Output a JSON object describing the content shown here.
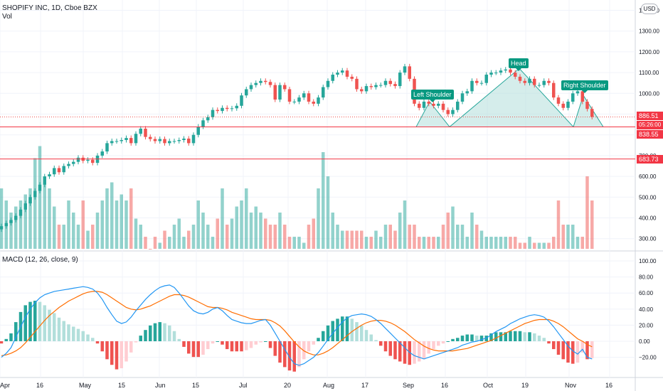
{
  "header": {
    "symbol": "SHOPIFY INC, 1D, Cboe BZX",
    "volume_label": "Vol",
    "macd_label": "MACD (12, 26, close, 9)",
    "currency": "USD"
  },
  "price_axis": {
    "labels": [
      "1400.00",
      "1300.00",
      "1200.00",
      "1100.00",
      "1000.00",
      "900.00",
      "800.00",
      "700.00",
      "600.00",
      "500.00",
      "400.00",
      "300.00"
    ],
    "current_price": "886.51",
    "countdown": "05:26:00"
  },
  "macd_axis": {
    "labels": [
      "100.00",
      "80.00",
      "60.00",
      "40.00",
      "20.00",
      "0.00",
      "−20.00"
    ]
  },
  "time_axis": {
    "labels": [
      "Apr",
      "16",
      "May",
      "15",
      "Jun",
      "15",
      "Jul",
      "20",
      "Aug",
      "17",
      "Sep",
      "16",
      "Oct",
      "19",
      "Nov",
      "16"
    ]
  },
  "horizontal_levels": [
    {
      "label": "838.55",
      "price": 838.55,
      "color": "#f23645"
    },
    {
      "label": "683.73",
      "price": 683.73,
      "color": "#f23645"
    }
  ],
  "annotations": {
    "left_shoulder": "Left Shoulder",
    "head": "Head",
    "right_shoulder": "Right Shoulder"
  },
  "colors": {
    "up": "#26a69a",
    "down": "#ef5350",
    "macd_line": "#2196f3",
    "signal_line": "#ff6d00",
    "pattern_fill": "#b2dfdb",
    "pattern_stroke": "#26a69a",
    "annotation_bg": "#089981"
  },
  "chart_data": {
    "type": "candlestick",
    "title": "SHOPIFY INC, 1D, Cboe BZX",
    "ylim_price": [
      280,
      1450
    ],
    "ylim_macd": [
      -30,
      110
    ],
    "closes": [
      360,
      375,
      390,
      410,
      440,
      470,
      500,
      530,
      560,
      600,
      610,
      640,
      620,
      650,
      660,
      670,
      690,
      675,
      680,
      665,
      700,
      720,
      760,
      770,
      770,
      775,
      785,
      760,
      805,
      830,
      790,
      780,
      770,
      780,
      760,
      770,
      770,
      775,
      782,
      760,
      800,
      840,
      870,
      885,
      920,
      915,
      930,
      925,
      928,
      940,
      990,
      1020,
      1040,
      1050,
      1060,
      1055,
      1040,
      970,
      1040,
      1020,
      960,
      960,
      980,
      1000,
      960,
      950,
      980,
      1030,
      1060,
      1090,
      1100,
      1110,
      1080,
      1070,
      1020,
      1010,
      1035,
      1030,
      1040,
      1040,
      1060,
      1045,
      1035,
      1100,
      1130,
      1070,
      950,
      930,
      960,
      950,
      940,
      950,
      920,
      900,
      920,
      960,
      1000,
      1010,
      1060,
      1050,
      1050,
      1090,
      1100,
      1100,
      1110,
      1115,
      1100,
      1080,
      1060,
      1050,
      1070,
      1040,
      1040,
      1060,
      1050,
      980,
      950,
      930,
      960,
      1000,
      1010,
      960,
      925,
      886.51
    ],
    "volumes": [
      330,
      320,
      310,
      315,
      320,
      325,
      330,
      355,
      365,
      335,
      330,
      315,
      300,
      300,
      320,
      310,
      300,
      320,
      295,
      300,
      310,
      320,
      330,
      335,
      320,
      325,
      320,
      330,
      305,
      300,
      290,
      280,
      290,
      285,
      295,
      290,
      300,
      305,
      290,
      295,
      300,
      320,
      310,
      300,
      290,
      305,
      330,
      300,
      305,
      315,
      320,
      330,
      310,
      315,
      310,
      305,
      300,
      300,
      310,
      300,
      290,
      290,
      290,
      285,
      300,
      305,
      330,
      360,
      340,
      310,
      300,
      295,
      295,
      295,
      295,
      295,
      290,
      290,
      295,
      290,
      300,
      300,
      295,
      310,
      320,
      300,
      300,
      290,
      290,
      290,
      290,
      290,
      300,
      310,
      315,
      300,
      300,
      290,
      310,
      300,
      295,
      290,
      290,
      290,
      290,
      290,
      290,
      290,
      285,
      285,
      290,
      285,
      285,
      285,
      285,
      290,
      320,
      300,
      300,
      300,
      290,
      290,
      340,
      320
    ],
    "macd": [
      -20,
      -15,
      -8,
      5,
      18,
      30,
      40,
      48,
      54,
      58,
      60,
      62,
      63,
      64,
      65,
      66,
      67,
      68,
      67,
      65,
      60,
      52,
      42,
      33,
      25,
      22,
      24,
      30,
      38,
      45,
      52,
      58,
      63,
      67,
      69,
      70,
      67,
      60,
      52,
      44,
      38,
      35,
      34,
      36,
      40,
      42,
      38,
      32,
      27,
      25,
      23,
      22,
      22,
      24,
      26,
      27,
      20,
      10,
      0,
      -10,
      -20,
      -28,
      -30,
      -28,
      -24,
      -20,
      -14,
      -6,
      2,
      10,
      17,
      24,
      29,
      32,
      33,
      34,
      33,
      31,
      27,
      22,
      16,
      10,
      4,
      -2,
      -8,
      -14,
      -18,
      -20,
      -22,
      -20,
      -18,
      -16,
      -14,
      -12,
      -10,
      -8,
      -5,
      -3,
      -1,
      0,
      2,
      4,
      8,
      12,
      15,
      18,
      22,
      25,
      28,
      30,
      32,
      33,
      32,
      30,
      25,
      18,
      10,
      2,
      -6,
      -12,
      -16,
      -10,
      -20,
      -22
    ],
    "signal": [
      -18,
      -17,
      -15,
      -12,
      -8,
      -2,
      5,
      12,
      19,
      26,
      32,
      37,
      42,
      46,
      50,
      53,
      56,
      59,
      61,
      62,
      62,
      61,
      58,
      54,
      50,
      46,
      42,
      40,
      39,
      40,
      42,
      44,
      47,
      50,
      53,
      56,
      58,
      58,
      57,
      55,
      52,
      49,
      46,
      43,
      42,
      42,
      41,
      39,
      36,
      34,
      32,
      30,
      28,
      27,
      27,
      27,
      26,
      23,
      19,
      13,
      6,
      -1,
      -7,
      -12,
      -15,
      -17,
      -17,
      -15,
      -12,
      -8,
      -3,
      2,
      7,
      12,
      16,
      20,
      23,
      25,
      26,
      26,
      25,
      23,
      20,
      16,
      12,
      7,
      2,
      -2,
      -6,
      -9,
      -11,
      -12,
      -12,
      -12,
      -12,
      -11,
      -10,
      -9,
      -7,
      -5,
      -3,
      -1,
      1,
      4,
      7,
      10,
      13,
      16,
      19,
      22,
      24,
      26,
      27,
      27,
      27,
      25,
      22,
      18,
      13,
      8,
      3,
      0,
      -4,
      -7
    ],
    "head_and_shoulders": {
      "left_shoulder": 960,
      "head": 1120,
      "right_shoulder": 990,
      "neckline": 838.55
    }
  }
}
